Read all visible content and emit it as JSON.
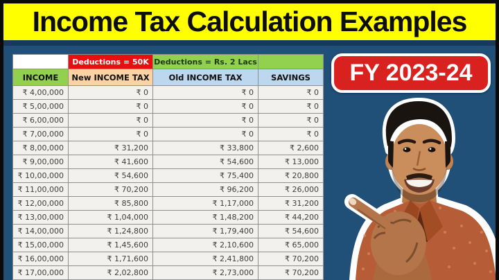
{
  "title": "Income Tax Calculation Examples",
  "badge": {
    "label": "FY 2023-24"
  },
  "table": {
    "group_headers": {
      "income_spacer": "",
      "new_regime": "Deductions = 50K",
      "old_regime": "Deductions = Rs. 2 Lacs",
      "savings_spacer": ""
    },
    "columns": [
      "INCOME",
      "New INCOME TAX",
      "Old INCOME TAX",
      "SAVINGS"
    ],
    "rows": [
      {
        "income": "₹ 4,00,000",
        "new_tax": "₹ 0",
        "old_tax": "₹ 0",
        "savings": "₹ 0"
      },
      {
        "income": "₹ 5,00,000",
        "new_tax": "₹ 0",
        "old_tax": "₹ 0",
        "savings": "₹ 0"
      },
      {
        "income": "₹ 6,00,000",
        "new_tax": "₹ 0",
        "old_tax": "₹ 0",
        "savings": "₹ 0"
      },
      {
        "income": "₹ 7,00,000",
        "new_tax": "₹ 0",
        "old_tax": "₹ 0",
        "savings": "₹ 0"
      },
      {
        "income": "₹ 8,00,000",
        "new_tax": "₹ 31,200",
        "old_tax": "₹ 33,800",
        "savings": "₹ 2,600"
      },
      {
        "income": "₹ 9,00,000",
        "new_tax": "₹ 41,600",
        "old_tax": "₹ 54,600",
        "savings": "₹ 13,000"
      },
      {
        "income": "₹ 10,00,000",
        "new_tax": "₹ 54,600",
        "old_tax": "₹ 75,400",
        "savings": "₹ 20,800"
      },
      {
        "income": "₹ 11,00,000",
        "new_tax": "₹ 70,200",
        "old_tax": "₹ 96,200",
        "savings": "₹ 26,000"
      },
      {
        "income": "₹ 12,00,000",
        "new_tax": "₹ 85,800",
        "old_tax": "₹ 1,17,000",
        "savings": "₹ 31,200"
      },
      {
        "income": "₹ 13,00,000",
        "new_tax": "₹ 1,04,000",
        "old_tax": "₹ 1,48,200",
        "savings": "₹ 44,200"
      },
      {
        "income": "₹ 14,00,000",
        "new_tax": "₹ 1,24,800",
        "old_tax": "₹ 1,79,400",
        "savings": "₹ 54,600"
      },
      {
        "income": "₹ 15,00,000",
        "new_tax": "₹ 1,45,600",
        "old_tax": "₹ 2,10,600",
        "savings": "₹ 65,000"
      },
      {
        "income": "₹ 16,00,000",
        "new_tax": "₹ 1,71,600",
        "old_tax": "₹ 2,41,800",
        "savings": "₹ 70,200"
      },
      {
        "income": "₹ 17,00,000",
        "new_tax": "₹ 2,02,800",
        "old_tax": "₹ 2,73,000",
        "savings": "₹ 70,200"
      }
    ]
  },
  "colors": {
    "background_blue": "#204f78",
    "banner_yellow": "#ffff00",
    "frame_black": "#0a0a0a",
    "header_red": "#ea0f0f",
    "header_green": "#92d050",
    "header_peach": "#fbd2a4",
    "header_blue": "#bdd7ee",
    "badge_red": "#d92120"
  }
}
